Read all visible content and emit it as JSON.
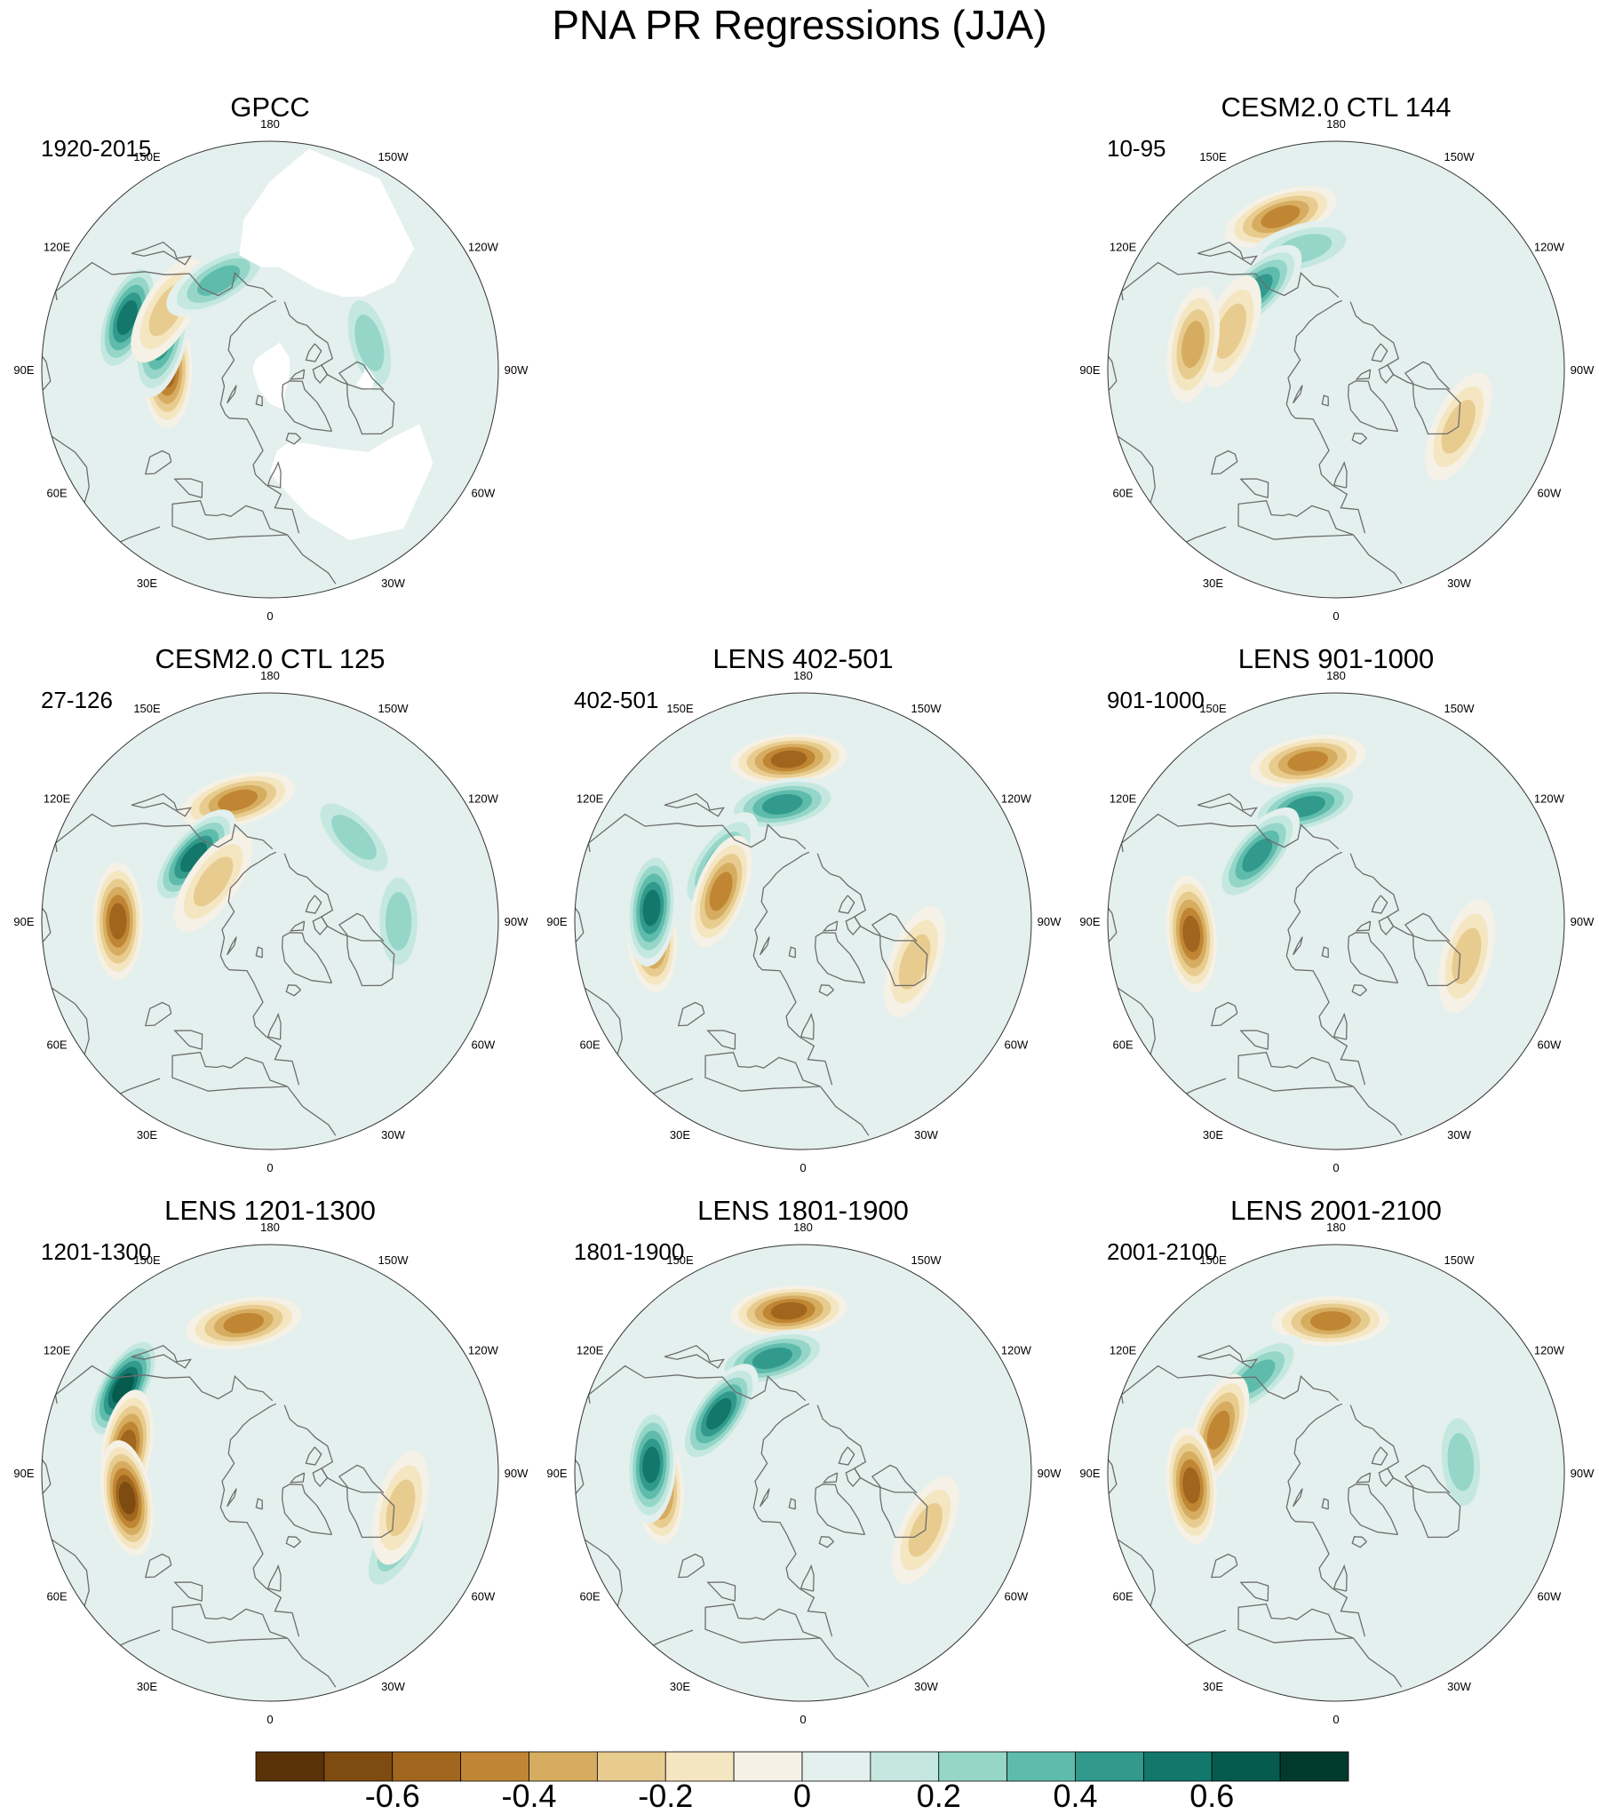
{
  "chart_data": {
    "type": "heatmap",
    "projection": "north-polar-stereographic",
    "title": "PNA PR Regressions (JJA)",
    "longitude_labels": [
      "180",
      "150E",
      "120E",
      "90E",
      "60E",
      "30E",
      "0",
      "30W",
      "60W",
      "90W",
      "120W",
      "150W"
    ],
    "colorbar": {
      "levels": [
        -0.7,
        -0.6,
        -0.5,
        -0.4,
        -0.3,
        -0.2,
        -0.1,
        0,
        0.1,
        0.2,
        0.3,
        0.4,
        0.5,
        0.6,
        0.7
      ],
      "tick_labels": [
        "-0.6",
        "-0.4",
        "-0.2",
        "0",
        "0.2",
        "0.4",
        "0.6"
      ],
      "colors": [
        "#5a3207",
        "#7e4b10",
        "#a1661d",
        "#c08634",
        "#d6ad60",
        "#e8cc8f",
        "#f5e6c2",
        "#f5f1e6",
        "#e4f0ed",
        "#c4e8e0",
        "#95d6c9",
        "#5fbcac",
        "#319a8c",
        "#13776b",
        "#045b4e",
        "#01392e"
      ]
    },
    "panels": [
      {
        "title": "GPCC",
        "period": "1920-2015",
        "observational": true,
        "features": [
          {
            "lon": 90,
            "lat": 55,
            "value": -0.6
          },
          {
            "lon": 105,
            "lat": 52,
            "value": 0.5
          },
          {
            "lon": 110,
            "lat": 40,
            "value": 0.55
          },
          {
            "lon": 120,
            "lat": 50,
            "value": -0.3
          },
          {
            "lon": 150,
            "lat": 55,
            "value": 0.4
          },
          {
            "lon": -105,
            "lat": 55,
            "value": 0.35
          }
        ]
      },
      {
        "title": "",
        "period": "",
        "empty": true,
        "features": []
      },
      {
        "title": "CESM2.0 CTL 144",
        "period": "10-95",
        "features": [
          {
            "lon": 160,
            "lat": 37,
            "value": -0.45
          },
          {
            "lon": 165,
            "lat": 48,
            "value": 0.35
          },
          {
            "lon": 135,
            "lat": 52,
            "value": 0.45
          },
          {
            "lon": 110,
            "lat": 52,
            "value": -0.35
          },
          {
            "lon": 100,
            "lat": 42,
            "value": -0.4
          },
          {
            "lon": -65,
            "lat": 45,
            "value": -0.25
          }
        ]
      },
      {
        "title": "CESM2.0 CTL 125",
        "period": "27-126",
        "features": [
          {
            "lon": 165,
            "lat": 48,
            "value": -0.45
          },
          {
            "lon": 130,
            "lat": 56,
            "value": 0.6
          },
          {
            "lon": 125,
            "lat": 66,
            "value": -0.35
          },
          {
            "lon": 90,
            "lat": 40,
            "value": -0.55
          },
          {
            "lon": -135,
            "lat": 50,
            "value": 0.3
          },
          {
            "lon": -90,
            "lat": 47,
            "value": 0.3
          }
        ]
      },
      {
        "title": "LENS 402-501",
        "period": "402-501",
        "features": [
          {
            "lon": 175,
            "lat": 37,
            "value": -0.6
          },
          {
            "lon": 170,
            "lat": 50,
            "value": 0.5
          },
          {
            "lon": 125,
            "lat": 55,
            "value": 0.4
          },
          {
            "lon": 110,
            "lat": 60,
            "value": -0.45
          },
          {
            "lon": 85,
            "lat": 40,
            "value": -0.6
          },
          {
            "lon": 95,
            "lat": 40,
            "value": 0.55
          },
          {
            "lon": -70,
            "lat": 50,
            "value": -0.3
          }
        ]
      },
      {
        "title": "LENS 901-1000",
        "period": "901-1000",
        "features": [
          {
            "lon": 170,
            "lat": 37,
            "value": -0.5
          },
          {
            "lon": 165,
            "lat": 50,
            "value": 0.45
          },
          {
            "lon": 130,
            "lat": 55,
            "value": 0.5
          },
          {
            "lon": 85,
            "lat": 42,
            "value": -0.6
          },
          {
            "lon": -75,
            "lat": 45,
            "value": -0.3
          }
        ]
      },
      {
        "title": "LENS 1201-1300",
        "period": "1201-1300",
        "features": [
          {
            "lon": 170,
            "lat": 40,
            "value": -0.45
          },
          {
            "lon": 120,
            "lat": 35,
            "value": 0.65
          },
          {
            "lon": 100,
            "lat": 42,
            "value": -0.55
          },
          {
            "lon": 80,
            "lat": 42,
            "value": -0.65
          },
          {
            "lon": -60,
            "lat": 42,
            "value": 0.3
          },
          {
            "lon": -75,
            "lat": 45,
            "value": -0.35
          }
        ]
      },
      {
        "title": "LENS 1801-1900",
        "period": "1801-1900",
        "features": [
          {
            "lon": 175,
            "lat": 37,
            "value": -0.6
          },
          {
            "lon": 165,
            "lat": 50,
            "value": 0.5
          },
          {
            "lon": 125,
            "lat": 55,
            "value": 0.6
          },
          {
            "lon": 85,
            "lat": 42,
            "value": -0.6
          },
          {
            "lon": 93,
            "lat": 40,
            "value": 0.6
          },
          {
            "lon": -65,
            "lat": 45,
            "value": -0.35
          }
        ]
      },
      {
        "title": "LENS 2001-2100",
        "period": "2001-2100",
        "features": [
          {
            "lon": 178,
            "lat": 40,
            "value": -0.5
          },
          {
            "lon": 140,
            "lat": 48,
            "value": 0.4
          },
          {
            "lon": 110,
            "lat": 48,
            "value": -0.5
          },
          {
            "lon": 85,
            "lat": 42,
            "value": -0.6
          },
          {
            "lon": -95,
            "lat": 48,
            "value": 0.3
          }
        ]
      }
    ]
  }
}
